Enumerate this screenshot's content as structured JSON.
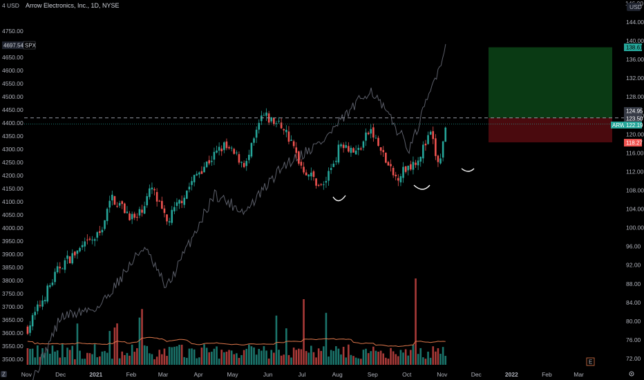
{
  "header": {
    "currency_left": "USD",
    "currency_right": "USD",
    "title": "Arrow Electronics, Inc., 1D, NYSE",
    "top_left_value": "4",
    "top_right_value": "146.00"
  },
  "colors": {
    "background": "#000000",
    "up": "#26a69a",
    "down": "#ef5350",
    "overlay_line": "#5d606b",
    "volume_ma": "#e0784c",
    "profit_zone": "#0a3a14",
    "loss_zone": "#4a0a0e"
  },
  "labels": {
    "spx_value": "4697.54",
    "spx_name": "SPX",
    "arw_name": "ARW",
    "price_target": "138.61",
    "price_top_entry": "124.95",
    "price_mid": "123.50",
    "price_current": "122.19",
    "price_stop": "118.27",
    "z_marker": "Z",
    "e_marker": "E"
  },
  "chart_data": {
    "type": "candlestick",
    "title": "Arrow Electronics, Inc., 1D, NYSE",
    "left_axis": {
      "ticks": [
        "4750.00",
        "4700.00",
        "4650.00",
        "4600.00",
        "4550.00",
        "4500.00",
        "4450.00",
        "4400.00",
        "4350.00",
        "4300.00",
        "4250.00",
        "4200.00",
        "4150.00",
        "4100.00",
        "4050.00",
        "4000.00",
        "3950.00",
        "3900.00",
        "3850.00",
        "3800.00",
        "3750.00",
        "3700.00",
        "3650.00",
        "3600.00",
        "3550.00",
        "3500.00"
      ]
    },
    "right_axis": {
      "ticks": [
        "144.00",
        "140.00",
        "136.00",
        "132.00",
        "128.00",
        "124.00",
        "120.00",
        "116.00",
        "112.00",
        "108.00",
        "104.00",
        "100.00",
        "96.00",
        "92.00",
        "88.00",
        "84.00",
        "80.00",
        "76.00",
        "72.00"
      ]
    },
    "x_axis": {
      "ticks": [
        "Nov",
        "Dec",
        "2021",
        "Feb",
        "Mar",
        "Apr",
        "May",
        "Jun",
        "Jul",
        "Aug",
        "Sep",
        "Oct",
        "Nov",
        "Dec",
        "2022",
        "Feb",
        "Mar"
      ]
    },
    "arw_close_key_points": [
      {
        "date": "2020-11-02",
        "close": 78.5
      },
      {
        "date": "2020-12-01",
        "close": 92.0
      },
      {
        "date": "2021-01-04",
        "close": 98.5
      },
      {
        "date": "2021-01-15",
        "close": 106.5
      },
      {
        "date": "2021-02-05",
        "close": 101.5
      },
      {
        "date": "2021-02-19",
        "close": 108.5
      },
      {
        "date": "2021-03-04",
        "close": 101.0
      },
      {
        "date": "2021-04-01",
        "close": 112.0
      },
      {
        "date": "2021-04-23",
        "close": 117.5
      },
      {
        "date": "2021-05-13",
        "close": 113.5
      },
      {
        "date": "2021-05-27",
        "close": 124.0
      },
      {
        "date": "2021-06-15",
        "close": 121.5
      },
      {
        "date": "2021-07-01",
        "close": 113.0
      },
      {
        "date": "2021-07-19",
        "close": 108.5
      },
      {
        "date": "2021-08-05",
        "close": 118.5
      },
      {
        "date": "2021-08-18",
        "close": 116.0
      },
      {
        "date": "2021-08-30",
        "close": 121.0
      },
      {
        "date": "2021-09-20",
        "close": 110.5
      },
      {
        "date": "2021-10-11",
        "close": 115.0
      },
      {
        "date": "2021-10-22",
        "close": 120.0
      },
      {
        "date": "2021-10-29",
        "close": 113.0
      },
      {
        "date": "2021-11-05",
        "close": 122.19
      }
    ],
    "spx_close_key_points": [
      {
        "date": "2020-11-02",
        "close": 3380
      },
      {
        "date": "2020-12-01",
        "close": 3660
      },
      {
        "date": "2021-01-04",
        "close": 3700
      },
      {
        "date": "2021-02-12",
        "close": 3930
      },
      {
        "date": "2021-03-04",
        "close": 3770
      },
      {
        "date": "2021-04-15",
        "close": 4130
      },
      {
        "date": "2021-05-12",
        "close": 4060
      },
      {
        "date": "2021-06-15",
        "close": 4240
      },
      {
        "date": "2021-07-19",
        "close": 4330
      },
      {
        "date": "2021-08-30",
        "close": 4530
      },
      {
        "date": "2021-10-04",
        "close": 4300
      },
      {
        "date": "2021-11-05",
        "close": 4697.54
      }
    ],
    "position_tool": {
      "target": 138.61,
      "entry": 123.5,
      "stop": 118.27
    },
    "horizontal_lines": [
      123.5,
      122.19
    ],
    "grid": false,
    "legend": "none"
  }
}
